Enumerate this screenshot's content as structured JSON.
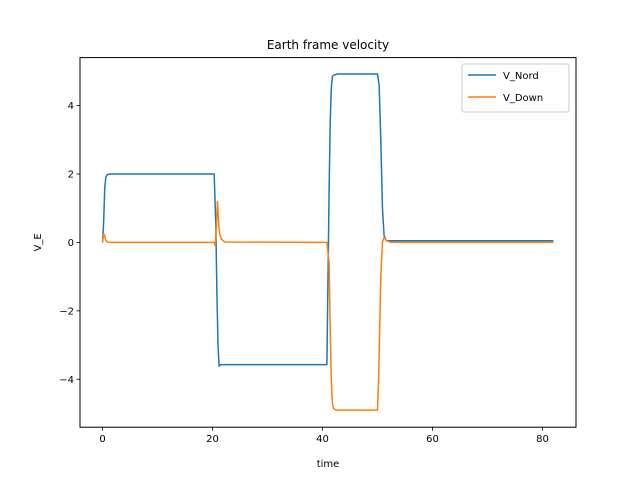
{
  "chart_data": {
    "type": "line",
    "title": "Earth frame velocity",
    "xlabel": "time",
    "ylabel": "V_E",
    "xlim": [
      -4.1,
      86.1
    ],
    "ylim": [
      -5.4,
      5.4
    ],
    "xticks": [
      0,
      20,
      40,
      60,
      80
    ],
    "yticks": [
      -4,
      -2,
      0,
      2,
      4
    ],
    "ytick_labels": [
      "−4",
      "−2",
      "0",
      "2",
      "4"
    ],
    "grid": false,
    "legend_position": "top-right",
    "series": [
      {
        "name": "V_Nord",
        "color": "#1f77b4",
        "x": [
          0,
          0.2,
          0.4,
          0.6,
          0.8,
          1.2,
          20.3,
          20.6,
          20.8,
          21.0,
          21.2,
          21.5,
          22.0,
          40.8,
          41.0,
          41.2,
          41.4,
          41.6,
          41.8,
          42.2,
          42.8,
          50.0,
          50.3,
          50.6,
          50.9,
          51.2,
          51.6,
          52.0,
          82
        ],
        "y": [
          0,
          0.6,
          1.6,
          1.9,
          1.97,
          2.0,
          2.0,
          0.5,
          -1.5,
          -3.0,
          -3.62,
          -3.57,
          -3.57,
          -3.57,
          -1.0,
          1.5,
          3.5,
          4.5,
          4.85,
          4.9,
          4.92,
          4.92,
          4.6,
          3.0,
          1.0,
          0.2,
          0.05,
          0.05,
          0.05
        ]
      },
      {
        "name": "V_Down",
        "color": "#ff7f0e",
        "x": [
          0,
          0.2,
          0.4,
          0.6,
          0.9,
          1.4,
          2.0,
          20.3,
          20.5,
          20.7,
          20.9,
          21.1,
          21.3,
          21.6,
          22.2,
          40.8,
          41.0,
          41.2,
          41.4,
          41.6,
          41.8,
          42.0,
          42.4,
          43.0,
          50.0,
          50.2,
          50.4,
          50.6,
          50.9,
          51.2,
          51.6,
          52.5,
          82
        ],
        "y": [
          0,
          0.25,
          0.2,
          0.05,
          0.01,
          0,
          0,
          0,
          -0.1,
          0.5,
          1.2,
          0.6,
          0.25,
          0.1,
          0.01,
          0,
          -0.3,
          -0.6,
          -2.5,
          -4.0,
          -4.7,
          -4.85,
          -4.9,
          -4.9,
          -4.9,
          -4.0,
          -2.5,
          -1.0,
          0.0,
          0.15,
          0.05,
          0.0,
          0.0
        ]
      }
    ]
  }
}
